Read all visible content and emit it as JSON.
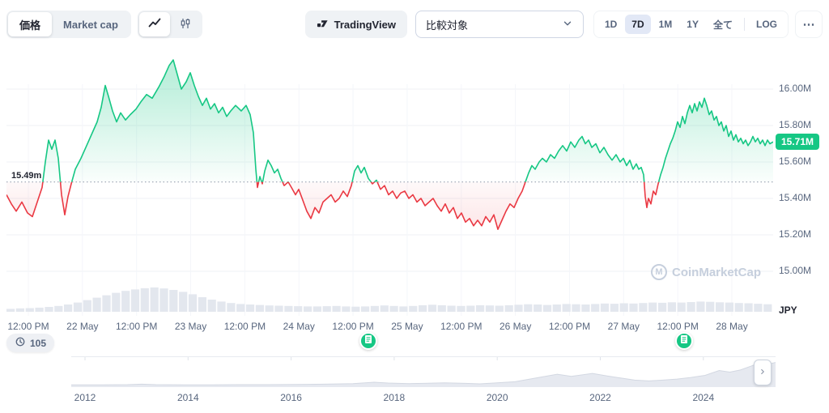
{
  "colors": {
    "green": "#16c784",
    "red": "#ea3943",
    "grid": "#eff2f5",
    "baseline": "#8b95a7",
    "volume": "#e3e7ee",
    "navigator_fill": "#e6e9f0",
    "navigator_edge": "#d3d8e2",
    "active_range_bg": "#e2e8f6",
    "axis_text": "#58667e",
    "price_badge_bg": "#16c784"
  },
  "toolbar": {
    "metric_toggle": {
      "options": [
        "価格",
        "Market cap"
      ],
      "selected": "価格"
    },
    "chart_type_toggle": {
      "options": [
        "line",
        "candlestick"
      ],
      "selected": "line"
    },
    "tradingview_label": "TradingView",
    "compare_placeholder": "比較対象",
    "ranges": [
      "1D",
      "7D",
      "1M",
      "1Y",
      "全て"
    ],
    "active_range": "7D",
    "log_label": "LOG",
    "more_label": "⋯"
  },
  "chart": {
    "baseline_label": "15.49m",
    "current_price_label": "15.71M",
    "y_axis_labels": [
      "16.00M",
      "15.80M",
      "15.60M",
      "15.40M",
      "15.20M",
      "15.00M"
    ],
    "y_axis_unit": "JPY",
    "x_axis_labels": [
      "12:00 PM",
      "22 May",
      "12:00 PM",
      "23 May",
      "12:00 PM",
      "24 May",
      "12:00 PM",
      "25 May",
      "12:00 PM",
      "26 May",
      "12:00 PM",
      "27 May",
      "12:00 PM",
      "28 May"
    ],
    "watermark": "CoinMarketCap",
    "watermark_logo_letter": "M",
    "history_badge_count": "105"
  },
  "navigator": {
    "years": [
      "2012",
      "2014",
      "2016",
      "2018",
      "2020",
      "2022",
      "2024"
    ]
  },
  "chart_data": {
    "type": "line",
    "title": "Price (JPY), 7D range with baseline comparison",
    "baseline": 15.49,
    "current_price": 15.71,
    "y_unit": "M JPY",
    "ylim": [
      14.95,
      16.25
    ],
    "x_range": [
      "21 May 12:00 PM",
      "28 May"
    ],
    "points": [
      [
        0,
        15.42
      ],
      [
        6,
        15.37
      ],
      [
        12,
        15.33
      ],
      [
        19,
        15.38
      ],
      [
        26,
        15.32
      ],
      [
        32,
        15.3
      ],
      [
        38,
        15.38
      ],
      [
        44,
        15.46
      ],
      [
        48,
        15.6
      ],
      [
        52,
        15.72
      ],
      [
        56,
        15.67
      ],
      [
        60,
        15.72
      ],
      [
        64,
        15.62
      ],
      [
        68,
        15.42
      ],
      [
        72,
        15.31
      ],
      [
        76,
        15.41
      ],
      [
        80,
        15.48
      ],
      [
        85,
        15.56
      ],
      [
        92,
        15.62
      ],
      [
        99,
        15.69
      ],
      [
        106,
        15.76
      ],
      [
        112,
        15.82
      ],
      [
        117,
        15.9
      ],
      [
        122,
        16.02
      ],
      [
        126,
        15.96
      ],
      [
        131,
        15.88
      ],
      [
        136,
        15.82
      ],
      [
        141,
        15.87
      ],
      [
        147,
        15.83
      ],
      [
        153,
        15.86
      ],
      [
        160,
        15.89
      ],
      [
        166,
        15.93
      ],
      [
        173,
        15.97
      ],
      [
        180,
        15.95
      ],
      [
        188,
        16.01
      ],
      [
        195,
        16.07
      ],
      [
        201,
        16.13
      ],
      [
        206,
        16.16
      ],
      [
        211,
        16.08
      ],
      [
        216,
        16.0
      ],
      [
        222,
        16.04
      ],
      [
        227,
        16.09
      ],
      [
        232,
        16.02
      ],
      [
        237,
        15.96
      ],
      [
        242,
        15.91
      ],
      [
        247,
        15.95
      ],
      [
        252,
        15.89
      ],
      [
        257,
        15.92
      ],
      [
        262,
        15.87
      ],
      [
        267,
        15.9
      ],
      [
        272,
        15.85
      ],
      [
        277,
        15.88
      ],
      [
        283,
        15.91
      ],
      [
        290,
        15.88
      ],
      [
        296,
        15.91
      ],
      [
        301,
        15.86
      ],
      [
        305,
        15.76
      ],
      [
        308,
        15.56
      ],
      [
        310,
        15.46
      ],
      [
        313,
        15.52
      ],
      [
        316,
        15.48
      ],
      [
        319,
        15.55
      ],
      [
        323,
        15.61
      ],
      [
        327,
        15.58
      ],
      [
        331,
        15.54
      ],
      [
        335,
        15.56
      ],
      [
        339,
        15.51
      ],
      [
        343,
        15.47
      ],
      [
        348,
        15.49
      ],
      [
        352,
        15.46
      ],
      [
        357,
        15.42
      ],
      [
        361,
        15.45
      ],
      [
        366,
        15.39
      ],
      [
        371,
        15.33
      ],
      [
        376,
        15.29
      ],
      [
        381,
        15.35
      ],
      [
        386,
        15.32
      ],
      [
        391,
        15.38
      ],
      [
        396,
        15.4
      ],
      [
        401,
        15.42
      ],
      [
        406,
        15.38
      ],
      [
        411,
        15.4
      ],
      [
        416,
        15.44
      ],
      [
        421,
        15.41
      ],
      [
        426,
        15.47
      ],
      [
        430,
        15.55
      ],
      [
        434,
        15.58
      ],
      [
        438,
        15.54
      ],
      [
        442,
        15.57
      ],
      [
        447,
        15.51
      ],
      [
        452,
        15.48
      ],
      [
        457,
        15.5
      ],
      [
        462,
        15.45
      ],
      [
        467,
        15.47
      ],
      [
        472,
        15.42
      ],
      [
        477,
        15.44
      ],
      [
        482,
        15.4
      ],
      [
        487,
        15.43
      ],
      [
        492,
        15.44
      ],
      [
        497,
        15.4
      ],
      [
        502,
        15.42
      ],
      [
        507,
        15.38
      ],
      [
        512,
        15.4
      ],
      [
        517,
        15.36
      ],
      [
        522,
        15.38
      ],
      [
        527,
        15.4
      ],
      [
        532,
        15.36
      ],
      [
        537,
        15.33
      ],
      [
        542,
        15.37
      ],
      [
        547,
        15.32
      ],
      [
        552,
        15.35
      ],
      [
        557,
        15.29
      ],
      [
        562,
        15.32
      ],
      [
        567,
        15.27
      ],
      [
        572,
        15.29
      ],
      [
        577,
        15.25
      ],
      [
        582,
        15.28
      ],
      [
        587,
        15.25
      ],
      [
        592,
        15.3
      ],
      [
        597,
        15.27
      ],
      [
        602,
        15.31
      ],
      [
        607,
        15.23
      ],
      [
        612,
        15.28
      ],
      [
        617,
        15.33
      ],
      [
        622,
        15.37
      ],
      [
        627,
        15.35
      ],
      [
        632,
        15.4
      ],
      [
        637,
        15.44
      ],
      [
        641,
        15.49
      ],
      [
        645,
        15.54
      ],
      [
        649,
        15.58
      ],
      [
        653,
        15.56
      ],
      [
        658,
        15.6
      ],
      [
        662,
        15.62
      ],
      [
        667,
        15.6
      ],
      [
        672,
        15.64
      ],
      [
        677,
        15.62
      ],
      [
        682,
        15.66
      ],
      [
        687,
        15.69
      ],
      [
        692,
        15.66
      ],
      [
        697,
        15.71
      ],
      [
        702,
        15.68
      ],
      [
        707,
        15.72
      ],
      [
        711,
        15.74
      ],
      [
        715,
        15.7
      ],
      [
        719,
        15.72
      ],
      [
        723,
        15.68
      ],
      [
        728,
        15.7
      ],
      [
        733,
        15.65
      ],
      [
        738,
        15.68
      ],
      [
        743,
        15.64
      ],
      [
        748,
        15.61
      ],
      [
        753,
        15.64
      ],
      [
        758,
        15.6
      ],
      [
        762,
        15.62
      ],
      [
        766,
        15.58
      ],
      [
        770,
        15.61
      ],
      [
        774,
        15.56
      ],
      [
        778,
        15.59
      ],
      [
        781,
        15.56
      ],
      [
        784,
        15.57
      ],
      [
        787,
        15.53
      ],
      [
        789,
        15.41
      ],
      [
        791,
        15.35
      ],
      [
        793,
        15.4
      ],
      [
        796,
        15.37
      ],
      [
        799,
        15.44
      ],
      [
        802,
        15.42
      ],
      [
        805,
        15.48
      ],
      [
        808,
        15.53
      ],
      [
        811,
        15.57
      ],
      [
        814,
        15.62
      ],
      [
        817,
        15.66
      ],
      [
        820,
        15.7
      ],
      [
        823,
        15.73
      ],
      [
        826,
        15.77
      ],
      [
        829,
        15.82
      ],
      [
        832,
        15.79
      ],
      [
        835,
        15.85
      ],
      [
        838,
        15.81
      ],
      [
        841,
        15.87
      ],
      [
        844,
        15.91
      ],
      [
        847,
        15.87
      ],
      [
        850,
        15.92
      ],
      [
        853,
        15.88
      ],
      [
        856,
        15.93
      ],
      [
        859,
        15.9
      ],
      [
        862,
        15.95
      ],
      [
        865,
        15.91
      ],
      [
        868,
        15.86
      ],
      [
        871,
        15.88
      ],
      [
        874,
        15.83
      ],
      [
        877,
        15.85
      ],
      [
        880,
        15.8
      ],
      [
        883,
        15.82
      ],
      [
        886,
        15.77
      ],
      [
        889,
        15.8
      ],
      [
        892,
        15.74
      ],
      [
        895,
        15.77
      ],
      [
        898,
        15.72
      ],
      [
        901,
        15.75
      ],
      [
        904,
        15.71
      ],
      [
        907,
        15.73
      ],
      [
        910,
        15.7
      ],
      [
        913,
        15.72
      ],
      [
        916,
        15.69
      ],
      [
        919,
        15.71
      ],
      [
        922,
        15.74
      ],
      [
        925,
        15.71
      ],
      [
        928,
        15.73
      ],
      [
        931,
        15.7
      ],
      [
        934,
        15.72
      ],
      [
        937,
        15.69
      ],
      [
        940,
        15.72
      ],
      [
        943,
        15.7
      ],
      [
        947,
        15.71
      ]
    ],
    "volume": [
      0.12,
      0.14,
      0.15,
      0.17,
      0.2,
      0.24,
      0.3,
      0.38,
      0.48,
      0.58,
      0.68,
      0.78,
      0.86,
      0.92,
      0.97,
      1.0,
      0.96,
      0.9,
      0.82,
      0.72,
      0.6,
      0.5,
      0.42,
      0.36,
      0.32,
      0.3,
      0.28,
      0.26,
      0.25,
      0.24,
      0.23,
      0.22,
      0.22,
      0.23,
      0.24,
      0.22,
      0.21,
      0.22,
      0.24,
      0.26,
      0.24,
      0.22,
      0.24,
      0.27,
      0.29,
      0.27,
      0.25,
      0.24,
      0.25,
      0.27,
      0.26,
      0.25,
      0.27,
      0.29,
      0.31,
      0.3,
      0.28,
      0.3,
      0.32,
      0.31,
      0.3,
      0.32,
      0.34,
      0.33,
      0.35,
      0.34,
      0.36,
      0.38,
      0.37,
      0.39,
      0.38,
      0.4,
      0.42,
      0.41,
      0.39,
      0.38,
      0.36,
      0.35,
      0.33,
      0.31
    ],
    "navigator_series": [
      [
        0,
        0.02
      ],
      [
        0.04,
        0.02
      ],
      [
        0.08,
        0.03
      ],
      [
        0.1,
        0.05
      ],
      [
        0.12,
        0.03
      ],
      [
        0.16,
        0.02
      ],
      [
        0.2,
        0.02
      ],
      [
        0.24,
        0.03
      ],
      [
        0.28,
        0.03
      ],
      [
        0.32,
        0.04
      ],
      [
        0.36,
        0.05
      ],
      [
        0.4,
        0.07
      ],
      [
        0.43,
        0.12
      ],
      [
        0.45,
        0.09
      ],
      [
        0.48,
        0.07
      ],
      [
        0.5,
        0.08
      ],
      [
        0.53,
        0.1
      ],
      [
        0.56,
        0.08
      ],
      [
        0.58,
        0.06
      ],
      [
        0.6,
        0.09
      ],
      [
        0.63,
        0.14
      ],
      [
        0.66,
        0.28
      ],
      [
        0.69,
        0.42
      ],
      [
        0.71,
        0.34
      ],
      [
        0.74,
        0.45
      ],
      [
        0.76,
        0.36
      ],
      [
        0.78,
        0.28
      ],
      [
        0.8,
        0.2
      ],
      [
        0.82,
        0.17
      ],
      [
        0.84,
        0.2
      ],
      [
        0.86,
        0.24
      ],
      [
        0.88,
        0.3
      ],
      [
        0.9,
        0.38
      ],
      [
        0.92,
        0.56
      ],
      [
        0.935,
        0.5
      ],
      [
        0.95,
        0.58
      ],
      [
        0.965,
        0.72
      ],
      [
        0.98,
        0.88
      ],
      [
        0.99,
        0.8
      ],
      [
        1,
        0.86
      ]
    ]
  }
}
